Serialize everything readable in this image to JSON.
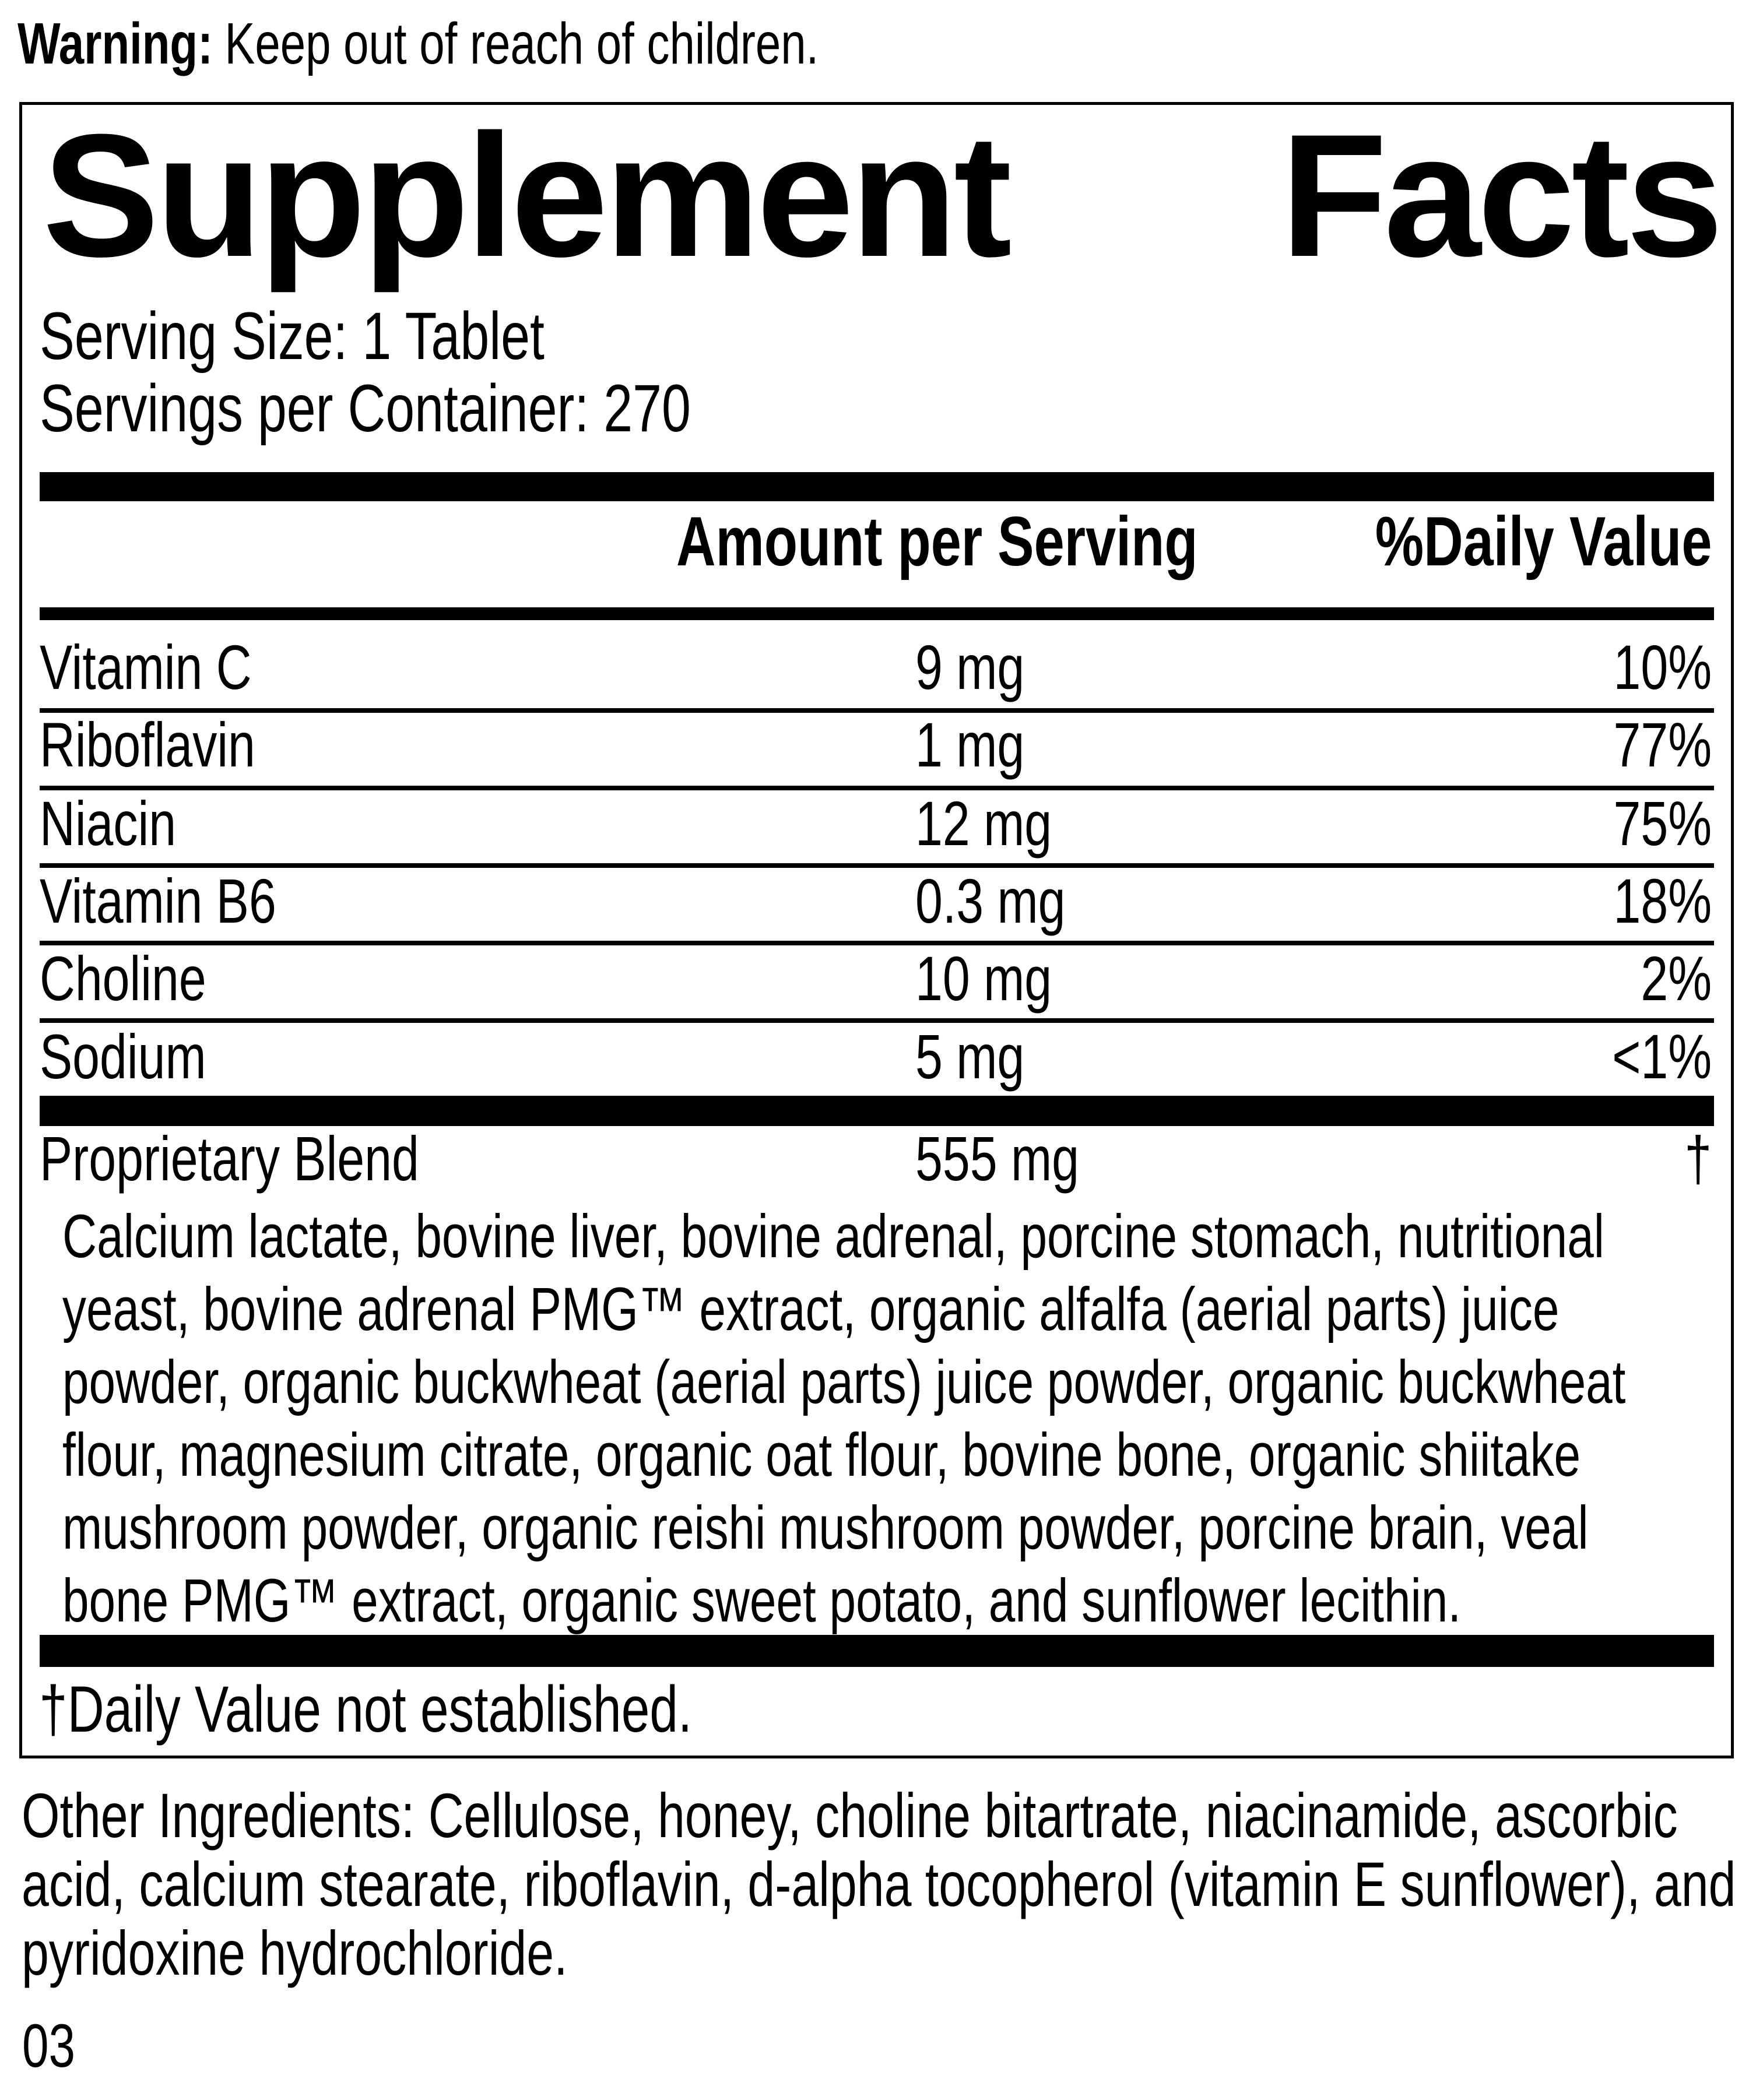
{
  "warning": {
    "label": "Warning:",
    "text": "Keep out of reach of children."
  },
  "panel": {
    "title_words": [
      "Supplement",
      "Facts"
    ],
    "serving_size": "Serving Size: 1 Tablet",
    "servings_per_container": "Servings per Container: 270",
    "columns": {
      "amount": "Amount per Serving",
      "daily_value": "%Daily Value"
    },
    "nutrients": [
      {
        "name": "Vitamin C",
        "amount": "9 mg",
        "dv": "10%"
      },
      {
        "name": "Riboflavin",
        "amount": "1 mg",
        "dv": "77%"
      },
      {
        "name": "Niacin",
        "amount": "12 mg",
        "dv": "75%"
      },
      {
        "name": "Vitamin B6",
        "amount": "0.3 mg",
        "dv": "18%"
      },
      {
        "name": "Choline",
        "amount": "10 mg",
        "dv": "2%"
      },
      {
        "name": "Sodium",
        "amount": "5 mg",
        "dv": "<1%"
      }
    ],
    "proprietary": {
      "name": "Proprietary Blend",
      "amount": "555 mg",
      "dv": "†",
      "description": "Calcium lactate, bovine liver, bovine adrenal, porcine stomach, nutritional yeast, bovine adrenal PMG™ extract, organic alfalfa (aerial parts) juice powder, organic buckwheat (aerial parts) juice powder, organic buckwheat flour, magnesium citrate, organic oat flour, bovine bone, organic shiitake mushroom powder, organic reishi mushroom powder, porcine brain, veal bone PMG™ extract, organic sweet potato, and sunflower lecithin."
    },
    "footnote": "†Daily Value not established."
  },
  "other_ingredients": "Other Ingredients: Cellulose, honey, choline bitartrate, niacinamide, ascorbic acid, calcium stearate, riboflavin, d-alpha tocopherol (vitamin E sunflower), and pyridoxine hydrochloride.",
  "footer_code": "03",
  "colors": {
    "ink": "#000000",
    "paper": "#ffffff"
  }
}
